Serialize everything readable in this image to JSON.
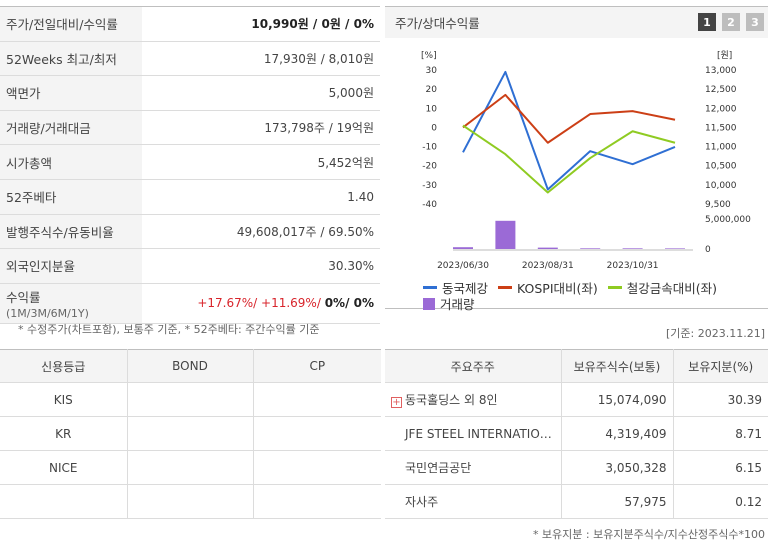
{
  "summary": {
    "rows": [
      {
        "label": "주가/전일대비/수익률",
        "value": "10,990원 / 0원 / 0%"
      },
      {
        "label": "52Weeks 최고/최저",
        "value": "17,930원 / 8,010원"
      },
      {
        "label": "액면가",
        "value": "5,000원"
      },
      {
        "label": "거래량/거래대금",
        "value": "173,798주 / 19억원"
      },
      {
        "label": "시가총액",
        "value": "5,452억원"
      },
      {
        "label": "52주베타",
        "value": "1.40"
      },
      {
        "label": "발행주식수/유동비율",
        "value": "49,608,017주 / 69.50%"
      },
      {
        "label": "외국인지분율",
        "value": "30.30%"
      }
    ],
    "returns": {
      "label": "수익률",
      "sub": "(1M/3M/6M/1Y)",
      "v1": "+17.67%",
      "v2": "+11.69%",
      "v3": "0%",
      "v4": "0%"
    },
    "note": "* 수정주가(차트포함), 보통주 기준, * 52주베타: 주간수익률 기준"
  },
  "chart_panel": {
    "title": "주가/상대수익률",
    "pages": [
      "1",
      "2",
      "3"
    ],
    "active_page": "1",
    "base_date": "[기준: 2023.11.21]"
  },
  "chart_data": {
    "type": "line",
    "x": [
      "2023/06/30",
      "2023/07/31",
      "2023/08/31",
      "2023/09/30",
      "2023/10/31",
      "2023/11/21"
    ],
    "x_tick_labels": [
      "2023/06/30",
      "2023/08/31",
      "2023/10/31"
    ],
    "left_axis": {
      "unit": "[%]",
      "ticks": [
        "30",
        "20",
        "10",
        "0",
        "-10",
        "-20",
        "-30",
        "-40"
      ],
      "ylim": [
        -40,
        30
      ]
    },
    "right_axis": {
      "unit": "[원]",
      "ticks": [
        "13,000",
        "12,500",
        "12,000",
        "11,500",
        "11,000",
        "10,500",
        "10,000",
        "9,500"
      ],
      "ylim": [
        9500,
        13000
      ]
    },
    "volume_axis": {
      "ticks": [
        "5,000,000",
        "0"
      ],
      "ylim": [
        0,
        5000000
      ]
    },
    "series": [
      {
        "name": "동국제강",
        "axis": "right",
        "color": "#2f6fd3",
        "values": [
          10850,
          12950,
          9880,
          10880,
          10540,
          10990
        ]
      },
      {
        "name": "KOSPI대비(좌)",
        "axis": "left",
        "color": "#cc3f16",
        "values": [
          0,
          17,
          -8,
          7,
          8.5,
          4
        ]
      },
      {
        "name": "철강금속대비(좌)",
        "axis": "left",
        "color": "#8fcb22",
        "values": [
          1,
          -14,
          -34,
          -16,
          -2,
          -8
        ]
      }
    ],
    "volume": {
      "name": "거래량",
      "color": "#9b6ad6",
      "values": [
        300000,
        4700000,
        230000,
        110000,
        110000,
        100000
      ]
    }
  },
  "credit": {
    "headers": [
      "신용등급",
      "BOND",
      "CP"
    ],
    "rows": [
      [
        "KIS",
        "",
        ""
      ],
      [
        "KR",
        "",
        ""
      ],
      [
        "NICE",
        "",
        ""
      ],
      [
        "",
        "",
        ""
      ]
    ]
  },
  "holders": {
    "headers": [
      "주요주주",
      "보유주식수(보통)",
      "보유지분(%)"
    ],
    "rows": [
      [
        "동국홀딩스 외 8인",
        "15,074,090",
        "30.39"
      ],
      [
        "JFE STEEL INTERNATIO…",
        "4,319,409",
        "8.71"
      ],
      [
        "국민연금공단",
        "3,050,328",
        "6.15"
      ],
      [
        "자사주",
        "57,975",
        "0.12"
      ]
    ],
    "note": "* 보유지분 : 보유지분주식수/지수산정주식수*100"
  }
}
